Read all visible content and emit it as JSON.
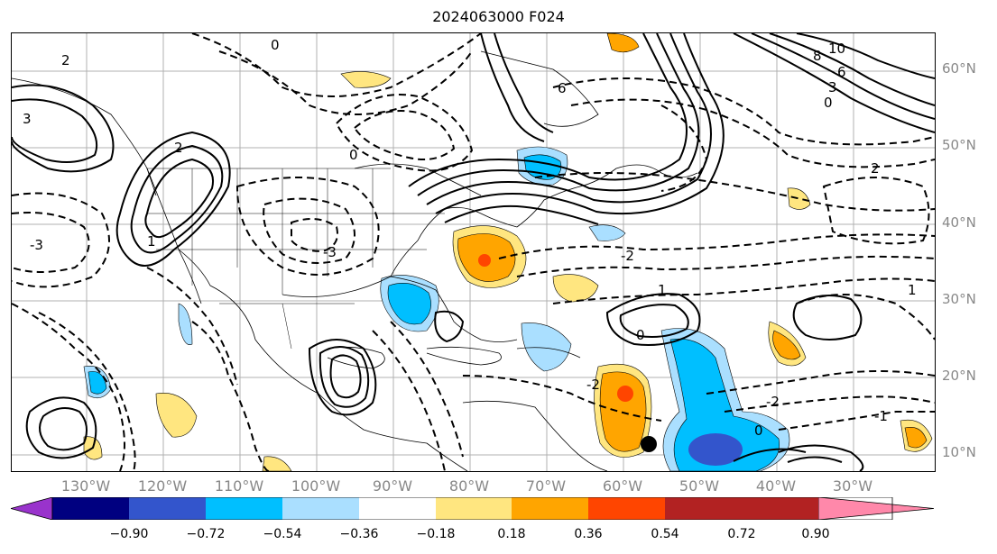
{
  "title": "2024063000 F024",
  "lat_labels": [
    "60°N",
    "50°N",
    "40°N",
    "30°N",
    "20°N",
    "10°N"
  ],
  "lon_labels": [
    "130°W",
    "120°W",
    "110°W",
    "100°W",
    "90°W",
    "80°W",
    "70°W",
    "60°W",
    "50°W",
    "40°W",
    "30°W"
  ],
  "colorbar": {
    "ticks": [
      "−0.90",
      "−0.72",
      "−0.54",
      "−0.36",
      "−0.18",
      "0.18",
      "0.36",
      "0.54",
      "0.72",
      "0.90"
    ],
    "colors": [
      "#9933cc",
      "#000080",
      "#3355cc",
      "#00bfff",
      "#aadfff",
      "#ffffff",
      "#ffe680",
      "#ffa500",
      "#ff4500",
      "#b22222",
      "#ff88aa"
    ]
  },
  "contour_labels": [
    "0",
    "2",
    "3",
    "-3",
    "1",
    "2",
    "6",
    "10",
    "8",
    "6",
    "3",
    "0",
    "2",
    "0",
    "-3",
    "-2",
    "1",
    "0",
    "-2",
    "1",
    "-1",
    "0",
    "-2"
  ],
  "marker": "black-dot"
}
